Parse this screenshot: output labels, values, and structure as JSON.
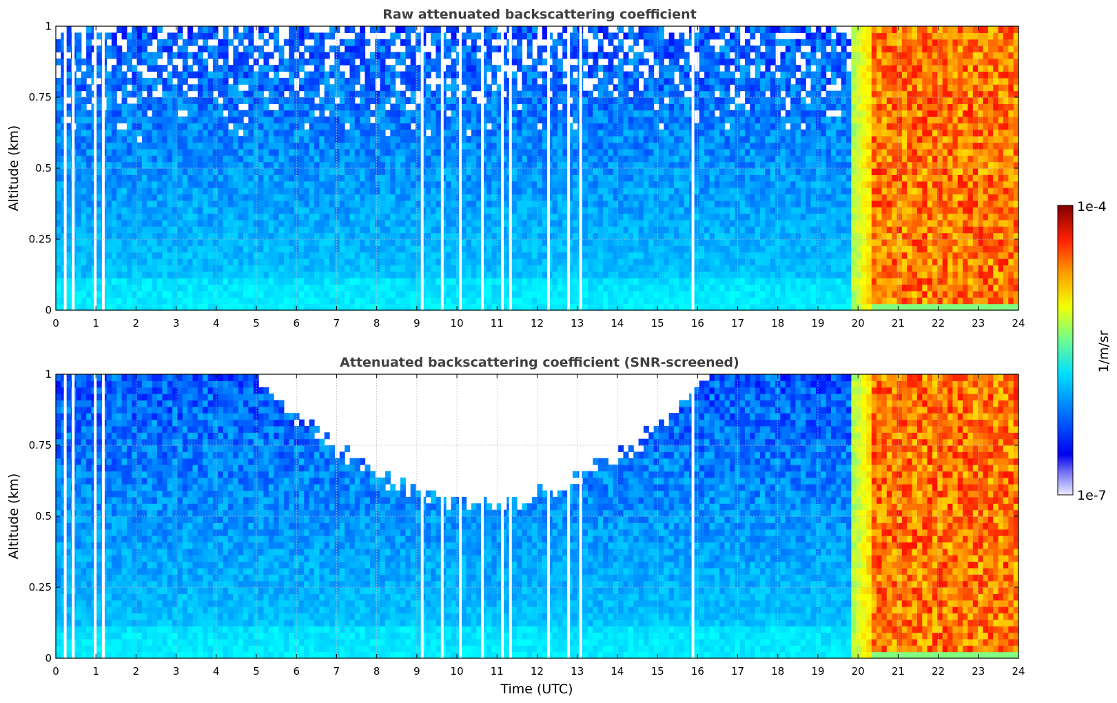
{
  "chart_data": [
    {
      "type": "heatmap",
      "title": "Raw attenuated backscattering coefficient",
      "xlabel": "",
      "ylabel": "Altitude (km)",
      "xlim": [
        0,
        24
      ],
      "ylim": [
        0,
        1
      ],
      "x_ticks": [
        "0",
        "1",
        "2",
        "3",
        "4",
        "5",
        "6",
        "7",
        "8",
        "9",
        "10",
        "11",
        "12",
        "13",
        "14",
        "15",
        "16",
        "17",
        "18",
        "19",
        "20",
        "21",
        "22",
        "23",
        "24"
      ],
      "y_ticks": [
        "0",
        "0.25",
        "0.5",
        "0.75",
        "1"
      ],
      "grid": true,
      "colormap": "jet",
      "regions": [
        {
          "time_start": 0,
          "time_end": 19.8,
          "description": "low backscatter, blue, noisy aloft"
        },
        {
          "time_start": 19.8,
          "time_end": 20.3,
          "description": "transition, green-yellow"
        },
        {
          "time_start": 20.3,
          "time_end": 24,
          "description": "high backscatter, orange-red"
        }
      ],
      "data_gaps_hours": [
        0.2,
        0.4,
        0.95,
        1.15,
        9.1,
        9.6,
        10.05,
        10.6,
        11.1,
        11.3,
        12.25,
        12.75,
        13.05,
        15.85
      ]
    },
    {
      "type": "heatmap",
      "title": "Attenuated backscattering coefficient (SNR-screened)",
      "xlabel": "Time (UTC)",
      "ylabel": "Altitude (km)",
      "xlim": [
        0,
        24
      ],
      "ylim": [
        0,
        1
      ],
      "x_ticks": [
        "0",
        "1",
        "2",
        "3",
        "4",
        "5",
        "6",
        "7",
        "8",
        "9",
        "10",
        "11",
        "12",
        "13",
        "14",
        "15",
        "16",
        "17",
        "18",
        "19",
        "20",
        "21",
        "22",
        "23",
        "24"
      ],
      "y_ticks": [
        "0",
        "0.25",
        "0.5",
        "0.75",
        "1"
      ],
      "grid": true,
      "colormap": "jet",
      "screened_region": {
        "time_start": 5,
        "time_end": 16.3,
        "min_altitude_km": 0.55
      },
      "data_gaps_hours": [
        0.2,
        0.4,
        0.95,
        1.15,
        9.1,
        9.6,
        10.05,
        10.6,
        11.1,
        11.3,
        12.25,
        12.75,
        13.05,
        15.85
      ]
    }
  ],
  "colorbar": {
    "label": "1/m/sr",
    "max_label": "1e-4",
    "min_label": "1e-7",
    "scale": "log",
    "range": [
      1e-07,
      0.0001
    ]
  }
}
